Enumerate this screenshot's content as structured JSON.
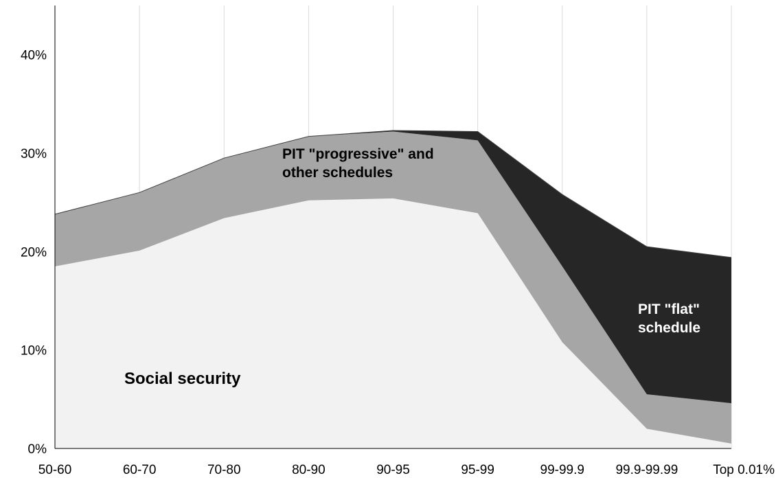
{
  "chart_data": {
    "type": "area",
    "stacked": true,
    "title": "",
    "xlabel": "",
    "ylabel": "",
    "categories": [
      "50-60",
      "60-70",
      "70-80",
      "80-90",
      "90-95",
      "95-99",
      "99-99.9",
      "99.9-99.99",
      "Top 0.01%"
    ],
    "ylim": [
      0,
      0.45
    ],
    "yticks": [
      0,
      0.1,
      0.2,
      0.3,
      0.4
    ],
    "ytick_labels": [
      "0%",
      "10%",
      "20%",
      "30%",
      "40%"
    ],
    "grid": "vertical",
    "legend": "none",
    "series": [
      {
        "color": "#f2f2f2",
        "label_text": "Social security",
        "values": [
          0.185,
          0.201,
          0.234,
          0.252,
          0.254,
          0.239,
          0.108,
          0.02,
          0.005
        ]
      },
      {
        "color": "#a6a6a6",
        "label_text": "PIT \"progressive\" and other schedules",
        "values": [
          0.053,
          0.059,
          0.061,
          0.065,
          0.068,
          0.074,
          0.077,
          0.035,
          0.041
        ]
      },
      {
        "color": "#262626",
        "label_text": "PIT \"flat\" schedule",
        "values": [
          0,
          0,
          0,
          0,
          0.001,
          0.009,
          0.073,
          0.15,
          0.148
        ]
      }
    ],
    "annotations": [
      {
        "lines": [
          "Social security"
        ]
      },
      {
        "lines": [
          "PIT \"progressive\" and",
          "other schedules"
        ]
      },
      {
        "lines": [
          "PIT \"flat\"",
          "schedule"
        ]
      }
    ]
  }
}
